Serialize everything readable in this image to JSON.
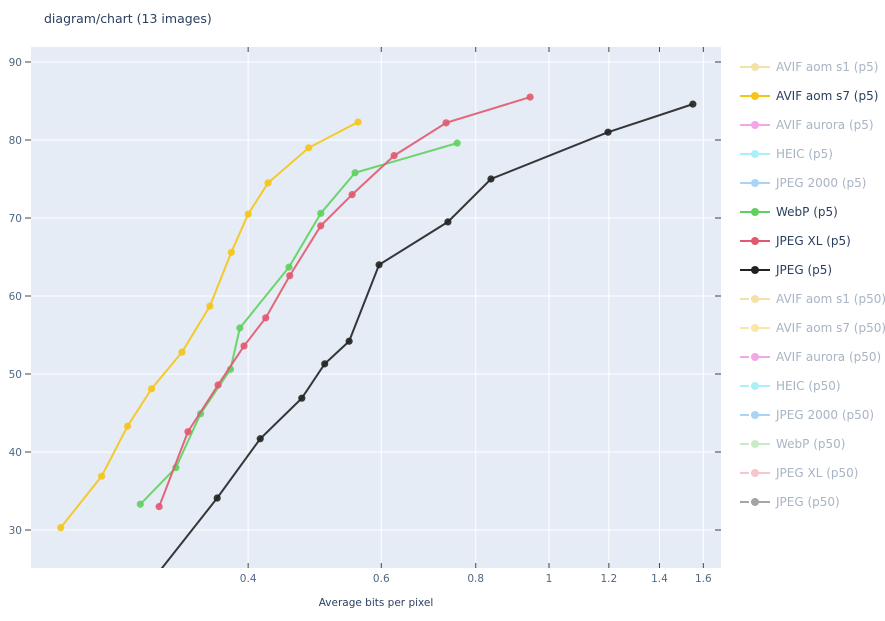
{
  "header": {
    "title": "diagram/chart (13 images)"
  },
  "colors": {
    "plot_bg": "#e5ecf6",
    "grid": "#ffffff",
    "text": "#2a3f5f",
    "tick_text": "#506784",
    "legend_hidden_text": "#a9b4c4"
  },
  "legend": {
    "items": [
      {
        "label": "AVIF aom s1 (p5)",
        "color": "#f0d98a",
        "active": false,
        "dash": false
      },
      {
        "label": "AVIF aom s7 (p5)",
        "color": "#f5c518",
        "active": true,
        "dash": false
      },
      {
        "label": "AVIF aurora (p5)",
        "color": "#ee8ae0",
        "active": false,
        "dash": false
      },
      {
        "label": "HEIC (p5)",
        "color": "#8eecf5",
        "active": false,
        "dash": false
      },
      {
        "label": "JPEG 2000 (p5)",
        "color": "#8ec6f2",
        "active": false,
        "dash": false
      },
      {
        "label": "WebP (p5)",
        "color": "#5fd05f",
        "active": true,
        "dash": false
      },
      {
        "label": "JPEG XL (p5)",
        "color": "#e2586e",
        "active": true,
        "dash": false
      },
      {
        "label": "JPEG (p5)",
        "color": "#222222",
        "active": true,
        "dash": false
      },
      {
        "label": "AVIF aom s1 (p50)",
        "color": "#f0d98a",
        "active": false,
        "dash": true
      },
      {
        "label": "AVIF aom s7 (p50)",
        "color": "#f8e08a",
        "active": false,
        "dash": true
      },
      {
        "label": "AVIF aurora (p50)",
        "color": "#ee8ae0",
        "active": false,
        "dash": true
      },
      {
        "label": "HEIC (p50)",
        "color": "#8eecf5",
        "active": false,
        "dash": true
      },
      {
        "label": "JPEG 2000 (p50)",
        "color": "#8ec6f2",
        "active": false,
        "dash": true
      },
      {
        "label": "WebP (p50)",
        "color": "#b5e6b0",
        "active": false,
        "dash": true
      },
      {
        "label": "JPEG XL (p50)",
        "color": "#f2b3bd",
        "active": false,
        "dash": true
      },
      {
        "label": "JPEG (p50)",
        "color": "#888888",
        "active": false,
        "dash": true
      }
    ]
  },
  "chart_data": {
    "type": "line",
    "title": "diagram/chart (13 images)",
    "xlabel": "Average bits per pixel",
    "ylabel": "",
    "xscale": "log",
    "xlim": [
      0.215,
      1.7
    ],
    "ylim": [
      25,
      92
    ],
    "xticks": [
      0.4,
      0.6,
      0.8,
      1,
      1.2,
      1.4,
      1.6
    ],
    "xtick_labels": [
      "0.4",
      "0.6",
      "0.8",
      "1",
      "1.2",
      "1.4",
      "1.6"
    ],
    "yticks": [
      30,
      40,
      50,
      60,
      70,
      80,
      90
    ],
    "ytick_labels": [
      "30",
      "40",
      "50",
      "60",
      "70",
      "80",
      "90"
    ],
    "grid": true,
    "legend_position": "right",
    "series": [
      {
        "name": "AVIF aom s7 (p5)",
        "color": "#f5c518",
        "x": [
          0.226,
          0.256,
          0.277,
          0.298,
          0.327,
          0.356,
          0.38,
          0.4,
          0.425,
          0.481,
          0.559
        ],
        "y": [
          30.3,
          36.9,
          43.3,
          48.1,
          52.8,
          58.7,
          65.6,
          70.5,
          74.5,
          79.0,
          82.3
        ]
      },
      {
        "name": "WebP (p5)",
        "color": "#5fd05f",
        "x": [
          0.288,
          0.321,
          0.346,
          0.379,
          0.39,
          0.453,
          0.499,
          0.554,
          0.756
        ],
        "y": [
          33.3,
          38.0,
          44.9,
          50.6,
          55.9,
          63.7,
          70.6,
          75.8,
          79.6
        ]
      },
      {
        "name": "JPEG XL (p5)",
        "color": "#e2586e",
        "x": [
          0.305,
          0.333,
          0.365,
          0.395,
          0.422,
          0.454,
          0.499,
          0.549,
          0.624,
          0.731,
          0.944
        ],
        "y": [
          33.0,
          42.6,
          48.6,
          53.6,
          57.2,
          62.6,
          69.0,
          73.0,
          78.0,
          82.2,
          85.5
        ]
      },
      {
        "name": "JPEG (p5)",
        "color": "#222222",
        "x": [
          0.307,
          0.364,
          0.415,
          0.471,
          0.505,
          0.544,
          0.596,
          0.735,
          0.838,
          1.197,
          1.55
        ],
        "y": [
          25.0,
          34.1,
          41.7,
          46.9,
          51.3,
          54.2,
          64.0,
          69.5,
          75.0,
          81.0,
          84.6
        ],
        "first_point_clipped": true
      }
    ]
  }
}
